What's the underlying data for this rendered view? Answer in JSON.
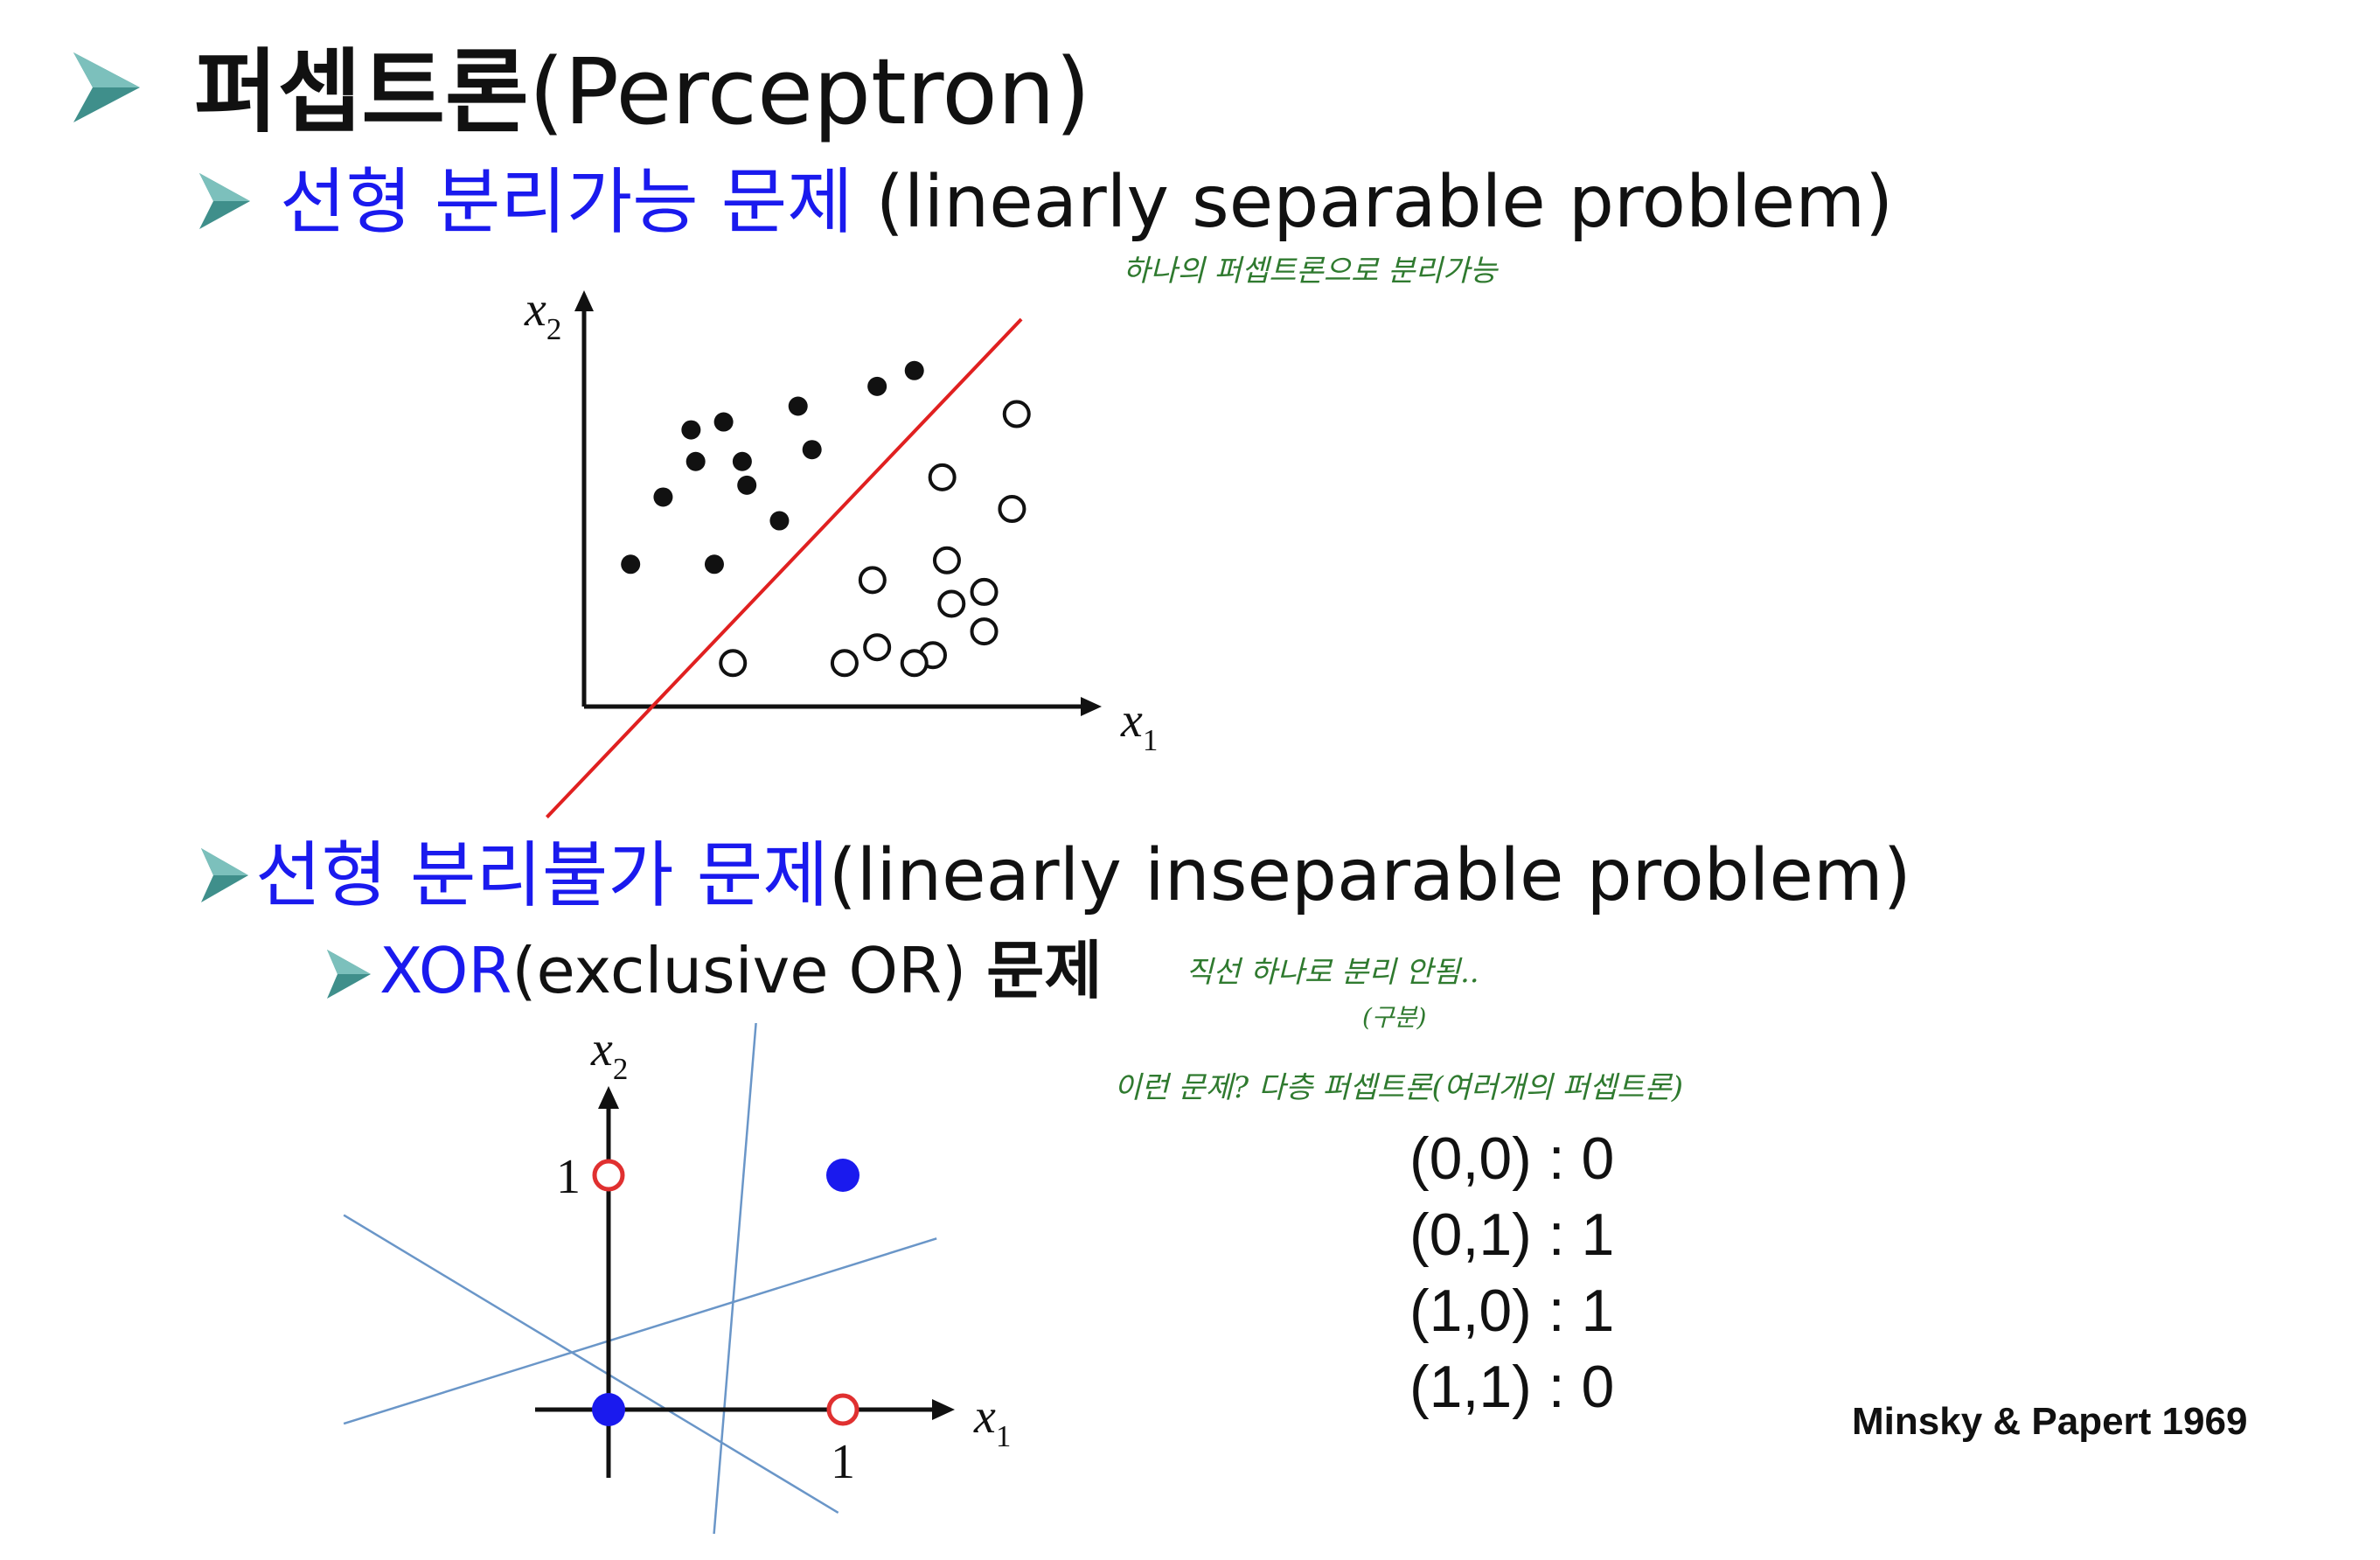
{
  "title": {
    "korean": "퍼셉트론",
    "english": "(Perceptron)"
  },
  "sections": [
    {
      "korean": "선형 분리가능 문제",
      "english": " (linearly separable problem)"
    },
    {
      "korean": "선형 분리불가 문제",
      "english": "(linearly inseparable problem)"
    }
  ],
  "xor_heading": {
    "xor": "XOR",
    "paren": "(exclusive OR) ",
    "korean": "문제"
  },
  "notes": {
    "separable": "하나의 퍼셉트론으로 분리가능",
    "xor_line": "직선 하나로 분리 안됨..",
    "xor_line_sub": "(구분)",
    "multi_layer": "이런 문제?  다층 퍼셉트론(여러개의 퍼셉트론)"
  },
  "truth_table": [
    "(0,0) : 0",
    "(0,1) : 1",
    "(1,0) : 1",
    "(1,1) : 0"
  ],
  "citation": "Minsky & Papert 1969",
  "icons": {
    "bullet": "teal-arrow-bullet-icon"
  },
  "colors": {
    "accent_blue": "#1a1aee",
    "separator_red": "#e02020",
    "bullet_teal": "#3f8f8b",
    "note_green": "#2f7a2f",
    "xor_line_blue": "#6a96c8",
    "xor_open_red": "#e03030",
    "xor_filled_blue": "#1a1aee"
  },
  "chart_data": [
    {
      "type": "scatter",
      "xlabel": "x1",
      "ylabel": "x2",
      "series": [
        {
          "marker": "filled",
          "points": [
            [
              1.0,
              3.6
            ],
            [
              2.3,
              7.0
            ],
            [
              2.8,
              3.6
            ],
            [
              1.7,
              5.3
            ],
            [
              3.5,
              5.6
            ],
            [
              3.0,
              7.2
            ],
            [
              4.2,
              4.7
            ],
            [
              2.4,
              6.2
            ],
            [
              3.4,
              6.2
            ],
            [
              4.9,
              6.5
            ],
            [
              4.6,
              7.6
            ],
            [
              6.3,
              8.1
            ],
            [
              7.1,
              8.5
            ]
          ]
        },
        {
          "marker": "open",
          "points": [
            [
              9.3,
              7.4
            ],
            [
              9.2,
              5.0
            ],
            [
              7.7,
              5.8
            ],
            [
              7.8,
              3.7
            ],
            [
              6.2,
              3.2
            ],
            [
              8.6,
              2.9
            ],
            [
              7.9,
              2.6
            ],
            [
              8.6,
              1.9
            ],
            [
              7.5,
              1.3
            ],
            [
              6.3,
              1.5
            ],
            [
              5.6,
              1.1
            ],
            [
              7.1,
              1.1
            ],
            [
              3.2,
              1.1
            ]
          ]
        }
      ],
      "separator": {
        "from": [
          -0.8,
          -2.8
        ],
        "to": [
          9.4,
          9.8
        ]
      },
      "xlim": [
        0,
        10.5
      ],
      "ylim": [
        0,
        10.5
      ]
    },
    {
      "type": "scatter",
      "xlabel": "x1",
      "ylabel": "x2",
      "x_ticks": [
        "1"
      ],
      "y_ticks": [
        "1"
      ],
      "series": [
        {
          "marker": "filled",
          "points": [
            [
              0,
              0
            ],
            [
              1,
              1
            ]
          ]
        },
        {
          "marker": "open",
          "points": [
            [
              0,
              1
            ],
            [
              1,
              0
            ]
          ]
        }
      ],
      "lines": [
        {
          "from": [
            0.63,
            1.66
          ],
          "to": [
            0.45,
            -0.53
          ]
        },
        {
          "from": [
            -1.13,
            0.83
          ],
          "to": [
            0.98,
            -0.44
          ]
        },
        {
          "from": [
            -1.13,
            -0.06
          ],
          "to": [
            1.4,
            0.73
          ]
        }
      ],
      "xlim": [
        -0.32,
        1.48
      ],
      "ylim": [
        -0.32,
        1.48
      ]
    }
  ]
}
